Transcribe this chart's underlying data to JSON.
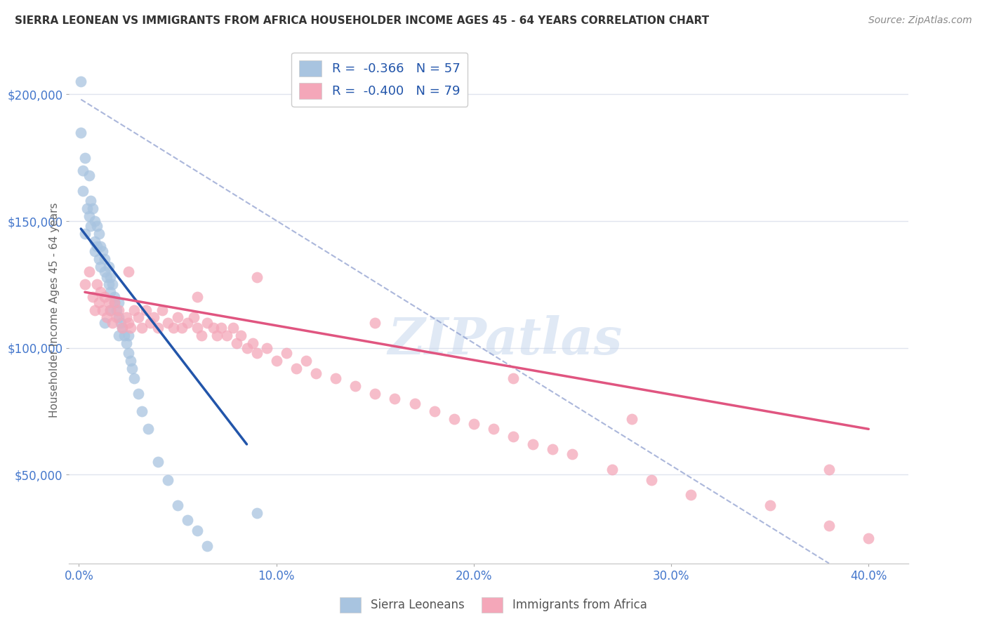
{
  "title": "SIERRA LEONEAN VS IMMIGRANTS FROM AFRICA HOUSEHOLDER INCOME AGES 45 - 64 YEARS CORRELATION CHART",
  "source": "Source: ZipAtlas.com",
  "ylabel": "Householder Income Ages 45 - 64 years",
  "xlabel_ticks": [
    "0.0%",
    "10.0%",
    "20.0%",
    "30.0%",
    "40.0%"
  ],
  "xlabel_vals": [
    0.0,
    0.1,
    0.2,
    0.3,
    0.4
  ],
  "ytick_labels": [
    "$50,000",
    "$100,000",
    "$150,000",
    "$200,000"
  ],
  "ytick_vals": [
    50000,
    100000,
    150000,
    200000
  ],
  "xlim": [
    -0.005,
    0.42
  ],
  "ylim": [
    15000,
    215000
  ],
  "legend_line1": "R =  -0.366   N = 57",
  "legend_line2": "R =  -0.400   N = 79",
  "blue_color": "#a8c4e0",
  "pink_color": "#f4a7b9",
  "blue_line_color": "#2255aa",
  "pink_line_color": "#e05580",
  "dashed_line_color": "#8899cc",
  "watermark_color": "#c8d8ee",
  "grid_color": "#e0e4ee",
  "background_color": "#ffffff",
  "title_color": "#333333",
  "axis_tick_color": "#4477cc",
  "sierra_x": [
    0.001,
    0.002,
    0.003,
    0.004,
    0.005,
    0.005,
    0.006,
    0.006,
    0.007,
    0.008,
    0.008,
    0.008,
    0.009,
    0.009,
    0.01,
    0.01,
    0.011,
    0.011,
    0.012,
    0.013,
    0.013,
    0.014,
    0.015,
    0.015,
    0.016,
    0.016,
    0.017,
    0.018,
    0.018,
    0.019,
    0.02,
    0.02,
    0.021,
    0.022,
    0.023,
    0.024,
    0.025,
    0.025,
    0.026,
    0.027,
    0.028,
    0.03,
    0.032,
    0.035,
    0.04,
    0.045,
    0.05,
    0.055,
    0.06,
    0.065,
    0.001,
    0.002,
    0.003,
    0.013,
    0.016,
    0.02,
    0.09
  ],
  "sierra_y": [
    205000,
    162000,
    175000,
    155000,
    168000,
    152000,
    158000,
    148000,
    155000,
    150000,
    142000,
    138000,
    148000,
    140000,
    145000,
    135000,
    140000,
    132000,
    138000,
    135000,
    130000,
    128000,
    132000,
    125000,
    128000,
    122000,
    125000,
    120000,
    118000,
    115000,
    118000,
    112000,
    110000,
    108000,
    105000,
    102000,
    105000,
    98000,
    95000,
    92000,
    88000,
    82000,
    75000,
    68000,
    55000,
    48000,
    38000,
    32000,
    28000,
    22000,
    185000,
    170000,
    145000,
    110000,
    115000,
    105000,
    35000
  ],
  "africa_x": [
    0.003,
    0.005,
    0.007,
    0.008,
    0.009,
    0.01,
    0.011,
    0.012,
    0.013,
    0.014,
    0.015,
    0.016,
    0.017,
    0.018,
    0.019,
    0.02,
    0.022,
    0.024,
    0.025,
    0.026,
    0.028,
    0.03,
    0.032,
    0.034,
    0.036,
    0.038,
    0.04,
    0.042,
    0.045,
    0.048,
    0.05,
    0.052,
    0.055,
    0.058,
    0.06,
    0.062,
    0.065,
    0.068,
    0.07,
    0.072,
    0.075,
    0.078,
    0.08,
    0.082,
    0.085,
    0.088,
    0.09,
    0.095,
    0.1,
    0.105,
    0.11,
    0.115,
    0.12,
    0.13,
    0.14,
    0.15,
    0.16,
    0.17,
    0.18,
    0.19,
    0.2,
    0.21,
    0.22,
    0.23,
    0.24,
    0.25,
    0.27,
    0.29,
    0.31,
    0.35,
    0.38,
    0.4,
    0.025,
    0.06,
    0.09,
    0.15,
    0.22,
    0.28,
    0.38
  ],
  "africa_y": [
    125000,
    130000,
    120000,
    115000,
    125000,
    118000,
    122000,
    115000,
    120000,
    112000,
    118000,
    115000,
    110000,
    118000,
    112000,
    115000,
    108000,
    112000,
    110000,
    108000,
    115000,
    112000,
    108000,
    115000,
    110000,
    112000,
    108000,
    115000,
    110000,
    108000,
    112000,
    108000,
    110000,
    112000,
    108000,
    105000,
    110000,
    108000,
    105000,
    108000,
    105000,
    108000,
    102000,
    105000,
    100000,
    102000,
    98000,
    100000,
    95000,
    98000,
    92000,
    95000,
    90000,
    88000,
    85000,
    82000,
    80000,
    78000,
    75000,
    72000,
    70000,
    68000,
    65000,
    62000,
    60000,
    58000,
    52000,
    48000,
    42000,
    38000,
    30000,
    25000,
    130000,
    120000,
    128000,
    110000,
    88000,
    72000,
    52000
  ],
  "blue_line_x": [
    0.001,
    0.085
  ],
  "blue_line_y": [
    147000,
    62000
  ],
  "pink_line_x": [
    0.003,
    0.4
  ],
  "pink_line_y": [
    122000,
    68000
  ],
  "dashed_line_x": [
    0.001,
    0.38
  ],
  "dashed_line_y": [
    198000,
    15000
  ]
}
